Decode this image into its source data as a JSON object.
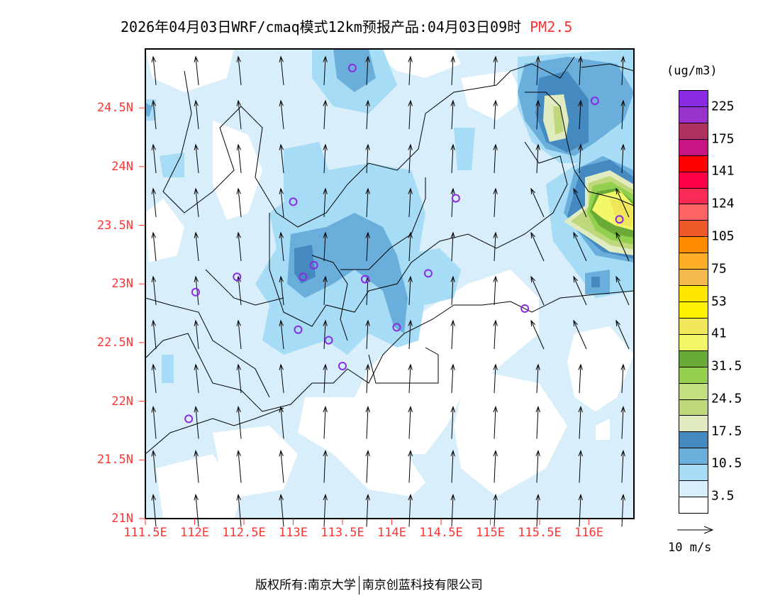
{
  "title": {
    "text": "2026年04月03日WRF/cmaq模式12km预报产品:04月03日09时",
    "variable": "PM2.5"
  },
  "map": {
    "lon_range": [
      111.5,
      116.46
    ],
    "lat_range": [
      21.0,
      25.0
    ],
    "lat_labels": [
      {
        "value": 21.0,
        "text": "21N"
      },
      {
        "value": 21.5,
        "text": "21.5N"
      },
      {
        "value": 22.0,
        "text": "22N"
      },
      {
        "value": 22.5,
        "text": "22.5N"
      },
      {
        "value": 23.0,
        "text": "23N"
      },
      {
        "value": 23.5,
        "text": "23.5N"
      },
      {
        "value": 24.0,
        "text": "24N"
      },
      {
        "value": 24.5,
        "text": "24.5N"
      }
    ],
    "lon_labels": [
      {
        "value": 111.5,
        "text": "111.5E"
      },
      {
        "value": 112.0,
        "text": "112E"
      },
      {
        "value": 112.5,
        "text": "112.5E"
      },
      {
        "value": 113.0,
        "text": "113E"
      },
      {
        "value": 113.5,
        "text": "113.5E"
      },
      {
        "value": 114.0,
        "text": "114E"
      },
      {
        "value": 114.5,
        "text": "114.5E"
      },
      {
        "value": 115.0,
        "text": "115E"
      },
      {
        "value": 115.5,
        "text": "115.5E"
      },
      {
        "value": 116.0,
        "text": "116E"
      }
    ],
    "stations": [
      [
        113.6,
        24.84
      ],
      [
        116.06,
        24.56
      ],
      [
        113.0,
        23.7
      ],
      [
        114.65,
        23.73
      ],
      [
        116.31,
        23.55
      ],
      [
        113.21,
        23.16
      ],
      [
        112.43,
        23.06
      ],
      [
        113.1,
        23.06
      ],
      [
        113.73,
        23.04
      ],
      [
        114.37,
        23.09
      ],
      [
        112.01,
        22.93
      ],
      [
        115.35,
        22.79
      ],
      [
        113.05,
        22.61
      ],
      [
        114.05,
        22.63
      ],
      [
        113.36,
        22.52
      ],
      [
        113.5,
        22.3
      ],
      [
        111.94,
        21.85
      ]
    ],
    "station_color": "#8a2be2"
  },
  "legend": {
    "unit": "(ug/m3)",
    "colors": [
      "#8a2be2",
      "#9932cc",
      "#b03060",
      "#c71585",
      "#ff0000",
      "#ff0046",
      "#f72b55",
      "#ff6464",
      "#f05a2a",
      "#ff8c00",
      "#ffae2a",
      "#f5b94b",
      "#ffe600",
      "#fff200",
      "#f0e65a",
      "#f3f76a",
      "#6aaa37",
      "#94d050",
      "#c3e080",
      "#c0d87c",
      "#e0ebc0",
      "#448ac0",
      "#6aaedc",
      "#a6dcf5",
      "#d8eefa",
      "#ffffff"
    ],
    "labels": [
      "225",
      "175",
      "141",
      "124",
      "105",
      "75",
      "53",
      "41",
      "31.5",
      "24.5",
      "17.5",
      "10.5",
      "3.5"
    ],
    "wind_ref": "10 m/s"
  },
  "footer": {
    "left": "版权所有:南京大学",
    "right": "南京创蓝科技有限公司"
  }
}
